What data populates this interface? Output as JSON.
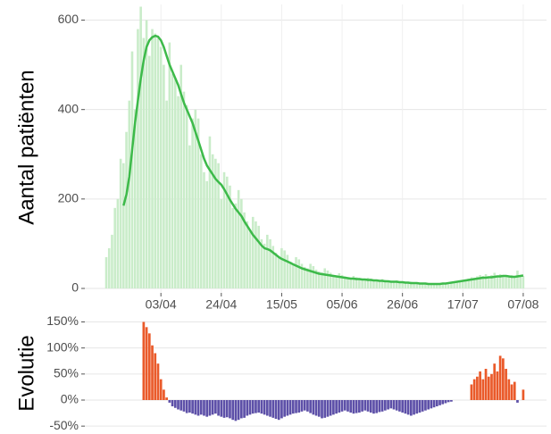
{
  "chart_data": [
    {
      "type": "bar_line",
      "ylabel": "Aantal patiënten",
      "categories": [
        null,
        null,
        null,
        null,
        null,
        null,
        null,
        null,
        null,
        null,
        null,
        null,
        null,
        null,
        null,
        null,
        null,
        null,
        null,
        "03/04",
        null,
        null,
        null,
        null,
        null,
        null,
        null,
        null,
        null,
        null,
        null,
        null,
        null,
        null,
        null,
        null,
        null,
        null,
        null,
        null,
        "24/04",
        null,
        null,
        null,
        null,
        null,
        null,
        null,
        null,
        null,
        null,
        null,
        null,
        null,
        null,
        null,
        null,
        null,
        null,
        null,
        null,
        "15/05",
        null,
        null,
        null,
        null,
        null,
        null,
        null,
        null,
        null,
        null,
        null,
        null,
        null,
        null,
        null,
        null,
        null,
        null,
        null,
        null,
        "05/06",
        null,
        null,
        null,
        null,
        null,
        null,
        null,
        null,
        null,
        null,
        null,
        null,
        null,
        null,
        null,
        null,
        null,
        null,
        null,
        null,
        "26/06",
        null,
        null,
        null,
        null,
        null,
        null,
        null,
        null,
        null,
        null,
        null,
        null,
        null,
        null,
        null,
        null,
        null,
        null,
        null,
        null,
        "17/07",
        null,
        null,
        null,
        null,
        null,
        null,
        null,
        null,
        null,
        null,
        null,
        null,
        null,
        null,
        null,
        null,
        null,
        null,
        null,
        null,
        "07/08"
      ],
      "series": [
        {
          "type": "bar",
          "color": "#c9ecc9",
          "values": [
            70,
            90,
            120,
            180,
            200,
            290,
            280,
            350,
            420,
            530,
            400,
            580,
            630,
            560,
            600,
            520,
            580,
            570,
            560,
            540,
            500,
            420,
            550,
            480,
            470,
            430,
            500,
            440,
            410,
            320,
            380,
            400,
            380,
            300,
            260,
            240,
            340,
            300,
            290,
            280,
            200,
            260,
            250,
            230,
            180,
            190,
            220,
            200,
            170,
            150,
            130,
            160,
            150,
            140,
            110,
            100,
            120,
            110,
            95,
            80,
            70,
            90,
            85,
            75,
            60,
            55,
            70,
            65,
            55,
            48,
            45,
            55,
            50,
            42,
            38,
            36,
            45,
            40,
            35,
            30,
            28,
            34,
            30,
            27,
            25,
            22,
            28,
            25,
            22,
            20,
            19,
            24,
            22,
            20,
            18,
            17,
            21,
            19,
            17,
            15,
            15,
            18,
            16,
            14,
            13,
            12,
            15,
            14,
            12,
            11,
            10,
            13,
            12,
            10,
            9,
            10,
            12,
            11,
            10,
            9,
            12,
            15,
            14,
            16,
            18,
            20,
            22,
            25,
            24,
            27,
            30,
            28,
            32,
            26,
            30,
            35,
            28,
            32,
            30,
            27,
            25,
            30,
            28,
            40,
            26,
            28
          ]
        },
        {
          "type": "line",
          "color": "#3dba4a",
          "values": [
            null,
            null,
            null,
            null,
            null,
            null,
            185,
            210,
            250,
            310,
            370,
            420,
            470,
            510,
            540,
            555,
            562,
            565,
            563,
            555,
            540,
            520,
            500,
            485,
            470,
            455,
            435,
            415,
            400,
            385,
            370,
            350,
            330,
            310,
            290,
            275,
            265,
            255,
            245,
            238,
            232,
            222,
            210,
            198,
            188,
            178,
            170,
            162,
            150,
            140,
            130,
            120,
            112,
            104,
            96,
            90,
            88,
            85,
            80,
            75,
            70,
            66,
            63,
            60,
            57,
            54,
            51,
            48,
            45,
            43,
            41,
            39,
            37,
            35,
            33,
            32,
            31,
            30,
            29,
            28,
            27,
            26,
            25,
            24,
            23,
            22,
            22,
            21,
            21,
            20,
            20,
            19,
            19,
            18,
            18,
            17,
            17,
            16,
            16,
            15,
            15,
            15,
            14,
            14,
            13,
            13,
            12,
            12,
            12,
            11,
            11,
            11,
            10,
            10,
            10,
            10,
            10,
            11,
            11,
            12,
            13,
            14,
            15,
            16,
            17,
            18,
            19,
            20,
            21,
            22,
            23,
            24,
            24,
            25,
            25,
            26,
            27,
            27,
            28,
            28,
            27,
            26,
            26,
            27,
            28,
            29
          ]
        }
      ],
      "ylim": [
        -10,
        635
      ],
      "yticks": [
        0,
        200,
        400,
        600
      ],
      "grid": true
    },
    {
      "type": "signed_bar",
      "ylabel": "Evolutie",
      "positive_color": "#ea5a2a",
      "negative_color": "#5d50a8",
      "values": [
        null,
        null,
        null,
        null,
        null,
        null,
        null,
        null,
        null,
        null,
        null,
        null,
        null,
        150,
        140,
        128,
        105,
        90,
        70,
        40,
        20,
        5,
        -5,
        -12,
        -15,
        -18,
        -20,
        -22,
        -25,
        -24,
        -26,
        -28,
        -30,
        -28,
        -30,
        -32,
        -30,
        -28,
        -26,
        -30,
        -32,
        -34,
        -33,
        -35,
        -38,
        -40,
        -38,
        -35,
        -34,
        -30,
        -28,
        -26,
        -25,
        -24,
        -26,
        -28,
        -30,
        -32,
        -34,
        -36,
        -38,
        -35,
        -32,
        -30,
        -28,
        -26,
        -25,
        -24,
        -22,
        -20,
        -22,
        -25,
        -28,
        -30,
        -32,
        -35,
        -34,
        -32,
        -30,
        -28,
        -26,
        -24,
        -22,
        -20,
        -22,
        -24,
        -26,
        -25,
        -24,
        -22,
        -20,
        -22,
        -24,
        -26,
        -25,
        -23,
        -22,
        -20,
        -18,
        -16,
        -18,
        -20,
        -22,
        -24,
        -26,
        -28,
        -30,
        -28,
        -26,
        -24,
        -22,
        -20,
        -18,
        -16,
        -14,
        -12,
        -10,
        -8,
        -6,
        -4,
        -3,
        null,
        null,
        null,
        null,
        null,
        null,
        30,
        40,
        45,
        55,
        40,
        60,
        45,
        50,
        70,
        55,
        85,
        80,
        60,
        40,
        30,
        35,
        -5,
        null,
        20
      ],
      "ylim": [
        -60,
        168
      ],
      "yticks": [
        {
          "value": -50,
          "label": "-50%"
        },
        {
          "value": 0,
          "label": "0%"
        },
        {
          "value": 50,
          "label": "50%"
        },
        {
          "value": 100,
          "label": "100%"
        },
        {
          "value": 150,
          "label": "150%"
        }
      ],
      "grid": true
    }
  ]
}
